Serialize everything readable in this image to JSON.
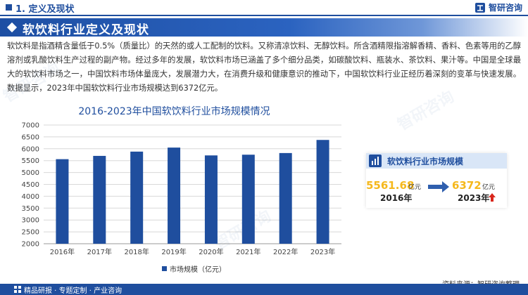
{
  "header": {
    "section_label": "1. 定义及现状",
    "brand": "智研咨询"
  },
  "title": "软饮料行业定义及现状",
  "paragraph": "软饮料是指酒精含量低于0.5%（质量比）的天然的或人工配制的饮料。又称清凉饮料、无醇饮料。所含酒精限指溶解香精、香料、色素等用的乙醇溶剂或乳酸饮料生产过程的副产物。经过多年的发展，软饮料市场已涵盖了多个细分品类，如碳酸饮料、瓶装水、茶饮料、果汁等。中国是全球最大的软饮料市场之一，中国饮料市场体量庞大，发展潜力大，在消费升级和健康意识的推动下，中国软饮料行业正经历着深刻的变革与快速发展。数据显示，2023年中国软饮料行业市场规模达到6372亿元。",
  "chart_data": {
    "type": "bar",
    "title": "2016-2023年中国软饮料行业市场规模情况",
    "categories": [
      "2016年",
      "2017年",
      "2018年",
      "2019年",
      "2020年",
      "2021年",
      "2022年",
      "2023年"
    ],
    "series": [
      {
        "name": "市场规模（亿元）",
        "values": [
          5561.68,
          5700,
          5880,
          6050,
          5720,
          5750,
          5820,
          6372
        ]
      }
    ],
    "ylim": [
      2000,
      7000
    ],
    "yticks": [
      2000,
      2500,
      3000,
      3500,
      4000,
      4500,
      5000,
      5500,
      6000,
      6500,
      7000
    ],
    "grid": true,
    "legend": "bottom",
    "color": "#1f4e9e"
  },
  "card": {
    "title": "软饮料行业市场规模",
    "value_start": "5561.68",
    "unit_start": "亿元",
    "year_start": "2016年",
    "value_end": "6372",
    "unit_end": "亿元",
    "year_end": "2023年"
  },
  "source": "资料来源：智研咨询整理",
  "footer": "精品研报 · 专题定制 · 产业咨询",
  "watermark": "智研咨询",
  "colors": {
    "primary": "#1f4e9e",
    "accent": "#f5b81c",
    "up": "#d9261c"
  }
}
